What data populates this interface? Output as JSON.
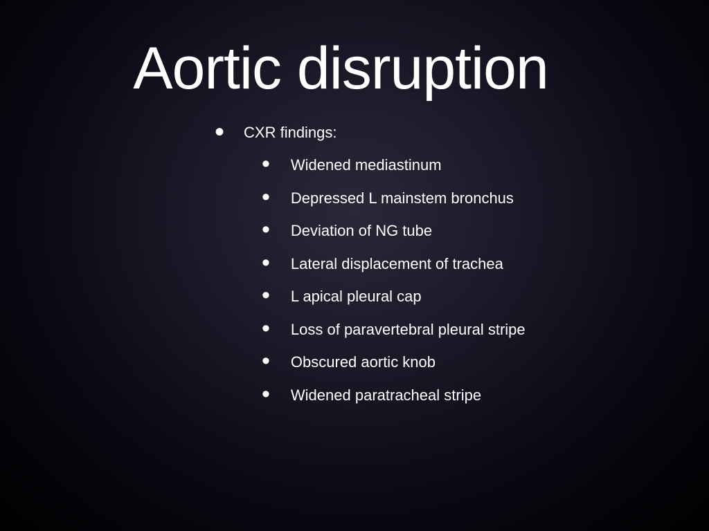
{
  "slide": {
    "title": "Aortic disruption",
    "background": {
      "gradient_center": "#2a2838",
      "gradient_mid": "#1a1826",
      "gradient_outer": "#0a0812",
      "gradient_edge": "#000000"
    },
    "text_color": "#ffffff",
    "title_fontsize": 86,
    "body_fontsize": 22,
    "main_item": {
      "label": "CXR findings:",
      "sub_items": [
        "Widened mediastinum",
        "Depressed L mainstem bronchus",
        "Deviation of NG tube",
        "Lateral displacement of trachea",
        "L apical pleural cap",
        "Loss of paravertebral pleural stripe",
        "Obscured aortic knob",
        "Widened paratracheal stripe"
      ]
    }
  }
}
